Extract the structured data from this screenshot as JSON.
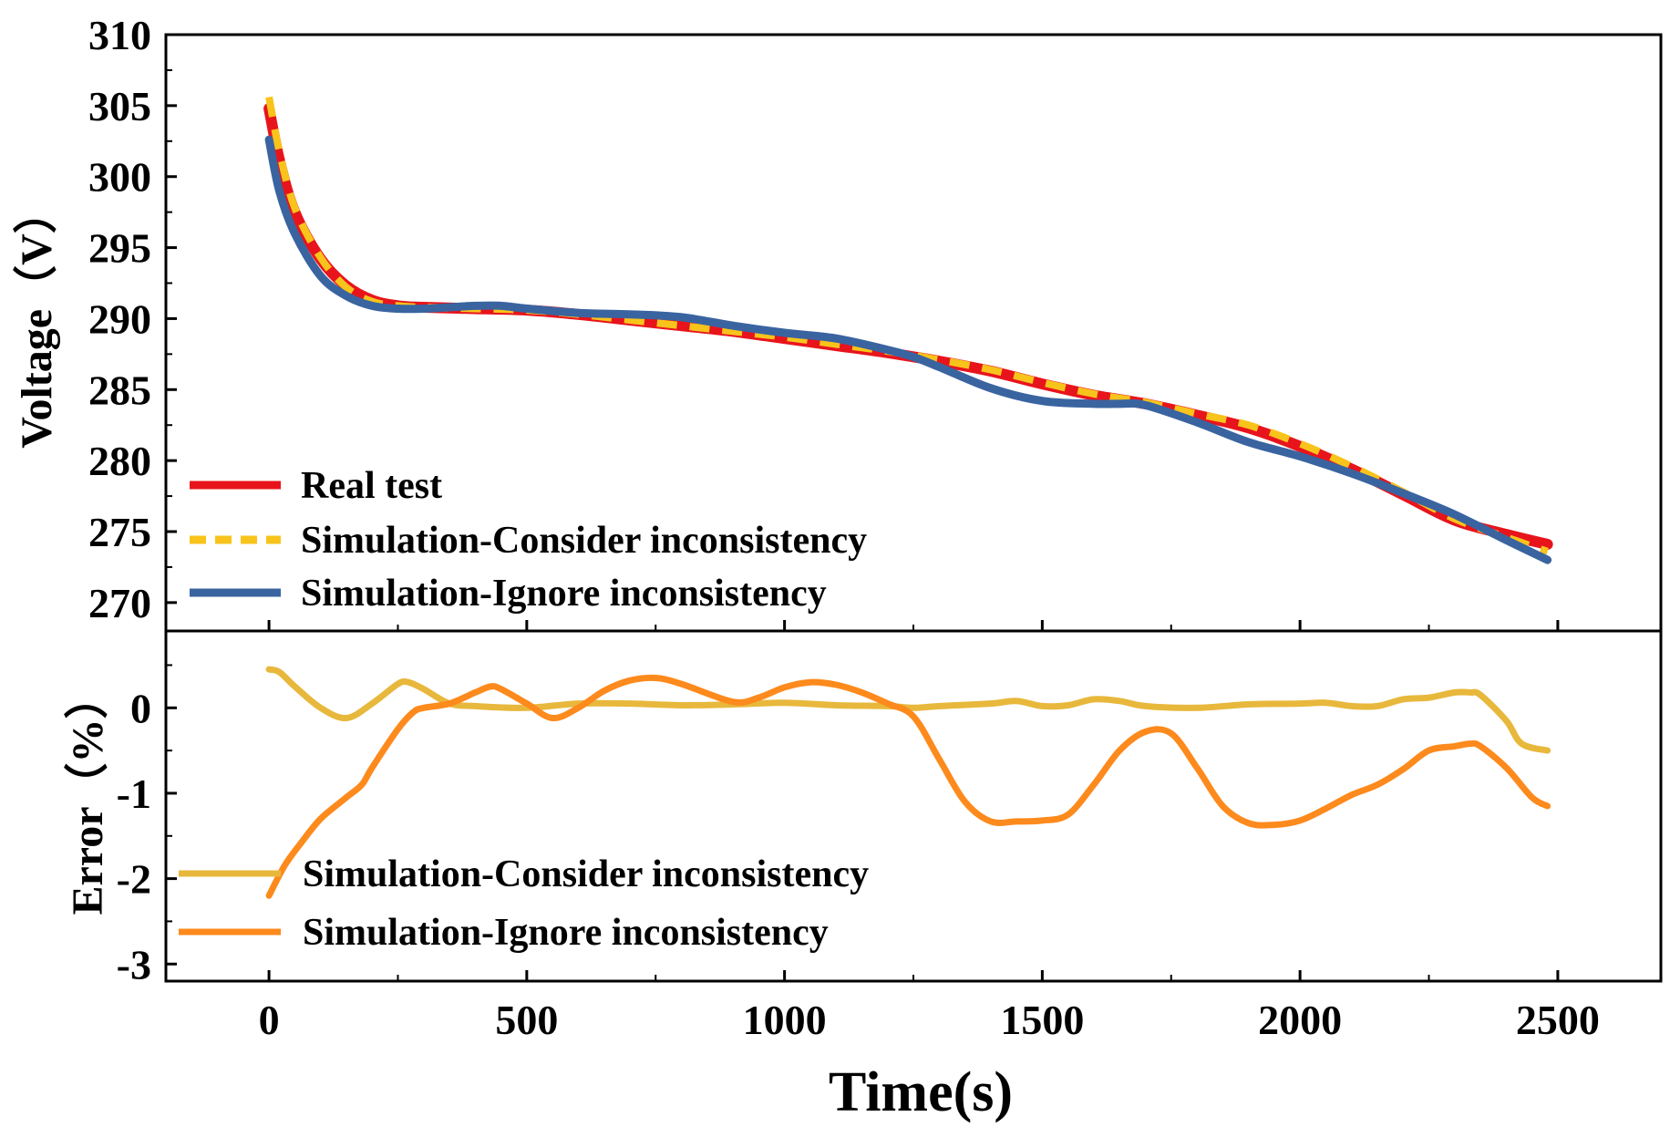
{
  "chart_data": [
    {
      "type": "line",
      "panel": "top",
      "title": "",
      "xlabel": "Time(s)",
      "ylabel": "Voltage（V）",
      "xlim": [
        -200,
        2700
      ],
      "ylim": [
        268,
        310
      ],
      "xticks": [
        0,
        500,
        1000,
        1500,
        2000,
        2500
      ],
      "xtick_labels": [
        "0",
        "500",
        "1000",
        "1500",
        "2000",
        "2500"
      ],
      "yticks": [
        270,
        275,
        280,
        285,
        290,
        295,
        300,
        305,
        310
      ],
      "ytick_labels": [
        "270",
        "275",
        "280",
        "285",
        "290",
        "295",
        "300",
        "305",
        "310"
      ],
      "grid": false,
      "legend_position": "bottom-left",
      "series": [
        {
          "name": "Real test",
          "color": "#e8141c",
          "style": "solid",
          "x": [
            0,
            20,
            50,
            100,
            150,
            200,
            250,
            300,
            400,
            500,
            600,
            700,
            800,
            900,
            1000,
            1100,
            1200,
            1300,
            1400,
            1500,
            1600,
            1700,
            1800,
            1900,
            2000,
            2100,
            2200,
            2300,
            2400,
            2480
          ],
          "y": [
            304.8,
            301.2,
            297.5,
            294.2,
            292.3,
            291.3,
            290.9,
            290.8,
            290.7,
            290.6,
            290.3,
            289.9,
            289.5,
            289.1,
            288.6,
            288.1,
            287.6,
            287.0,
            286.3,
            285.4,
            284.6,
            284.0,
            283.2,
            282.3,
            281.0,
            279.4,
            277.6,
            275.8,
            274.8,
            274.1
          ]
        },
        {
          "name": "Simulation-Consider inconsistency",
          "color": "#f8c41c",
          "style": "dashed",
          "x": [
            0,
            20,
            50,
            100,
            150,
            200,
            250,
            300,
            400,
            500,
            600,
            700,
            800,
            900,
            1000,
            1100,
            1200,
            1300,
            1400,
            1500,
            1600,
            1700,
            1800,
            1900,
            2000,
            2100,
            2200,
            2300,
            2400,
            2480
          ],
          "y": [
            305.6,
            301.8,
            297.8,
            294.3,
            292.2,
            291.2,
            290.9,
            290.8,
            290.7,
            290.6,
            290.3,
            289.9,
            289.5,
            289.1,
            288.7,
            288.2,
            287.7,
            287.1,
            286.4,
            285.5,
            284.7,
            284.1,
            283.3,
            282.5,
            281.2,
            279.6,
            277.8,
            275.9,
            274.6,
            273.6
          ]
        },
        {
          "name": "Simulation-Ignore inconsistency",
          "color": "#3a64a0",
          "style": "solid",
          "x": [
            0,
            20,
            50,
            100,
            150,
            200,
            250,
            300,
            350,
            400,
            450,
            500,
            600,
            700,
            800,
            900,
            1000,
            1100,
            1200,
            1250,
            1300,
            1400,
            1500,
            1600,
            1650,
            1700,
            1800,
            1900,
            2000,
            2100,
            2200,
            2300,
            2400,
            2480
          ],
          "y": [
            302.6,
            299.0,
            296.0,
            293.0,
            291.6,
            290.9,
            290.7,
            290.7,
            290.8,
            290.9,
            290.9,
            290.7,
            290.4,
            290.3,
            290.1,
            289.5,
            289.0,
            288.6,
            287.8,
            287.3,
            286.6,
            285.1,
            284.2,
            284.0,
            284.0,
            283.9,
            282.7,
            281.3,
            280.3,
            279.1,
            277.7,
            276.2,
            274.4,
            273.0
          ]
        }
      ]
    },
    {
      "type": "line",
      "panel": "bottom",
      "title": "",
      "xlabel": "Time(s)",
      "ylabel": "Error（%）",
      "xlim": [
        -200,
        2700
      ],
      "ylim": [
        -3.2,
        0.9
      ],
      "yticks": [
        -3,
        -2,
        -1,
        0
      ],
      "ytick_labels": [
        "-3",
        "-2",
        "-1",
        "0"
      ],
      "grid": false,
      "legend_position": "bottom-left",
      "series": [
        {
          "name": "Simulation-Consider inconsistency",
          "color": "#e8b83c",
          "style": "solid",
          "x": [
            0,
            20,
            50,
            100,
            150,
            200,
            250,
            270,
            300,
            350,
            400,
            500,
            600,
            700,
            800,
            900,
            1000,
            1100,
            1200,
            1250,
            1300,
            1400,
            1450,
            1500,
            1550,
            1600,
            1650,
            1700,
            1800,
            1900,
            2000,
            2050,
            2100,
            2150,
            2200,
            2250,
            2300,
            2330,
            2350,
            2400,
            2430,
            2480
          ],
          "y": [
            0.45,
            0.42,
            0.25,
            0.0,
            -0.12,
            0.05,
            0.28,
            0.3,
            0.22,
            0.05,
            0.02,
            0.0,
            0.05,
            0.05,
            0.03,
            0.04,
            0.06,
            0.03,
            0.02,
            0.0,
            0.02,
            0.05,
            0.08,
            0.02,
            0.03,
            0.1,
            0.08,
            0.02,
            0.0,
            0.04,
            0.05,
            0.06,
            0.02,
            0.02,
            0.1,
            0.12,
            0.18,
            0.18,
            0.15,
            -0.15,
            -0.42,
            -0.5
          ]
        },
        {
          "name": "Simulation-Ignore inconsistency",
          "color": "#fd8a1c",
          "style": "solid",
          "x": [
            0,
            30,
            60,
            100,
            150,
            180,
            200,
            250,
            280,
            300,
            350,
            400,
            430,
            450,
            500,
            550,
            600,
            650,
            700,
            750,
            800,
            900,
            950,
            1000,
            1050,
            1100,
            1150,
            1200,
            1250,
            1300,
            1350,
            1400,
            1450,
            1500,
            1550,
            1600,
            1650,
            1700,
            1750,
            1800,
            1850,
            1900,
            1950,
            2000,
            2050,
            2100,
            2150,
            2200,
            2250,
            2300,
            2330,
            2350,
            2400,
            2450,
            2480
          ],
          "y": [
            -2.2,
            -1.85,
            -1.6,
            -1.3,
            -1.05,
            -0.9,
            -0.7,
            -0.25,
            -0.05,
            0.0,
            0.05,
            0.18,
            0.25,
            0.22,
            0.05,
            -0.12,
            0.0,
            0.2,
            0.32,
            0.35,
            0.28,
            0.07,
            0.12,
            0.24,
            0.3,
            0.27,
            0.18,
            0.05,
            -0.1,
            -0.6,
            -1.1,
            -1.33,
            -1.33,
            -1.32,
            -1.25,
            -0.9,
            -0.5,
            -0.28,
            -0.3,
            -0.7,
            -1.15,
            -1.35,
            -1.37,
            -1.32,
            -1.18,
            -1.02,
            -0.9,
            -0.72,
            -0.5,
            -0.45,
            -0.42,
            -0.45,
            -0.7,
            -1.05,
            -1.15
          ]
        }
      ]
    }
  ]
}
